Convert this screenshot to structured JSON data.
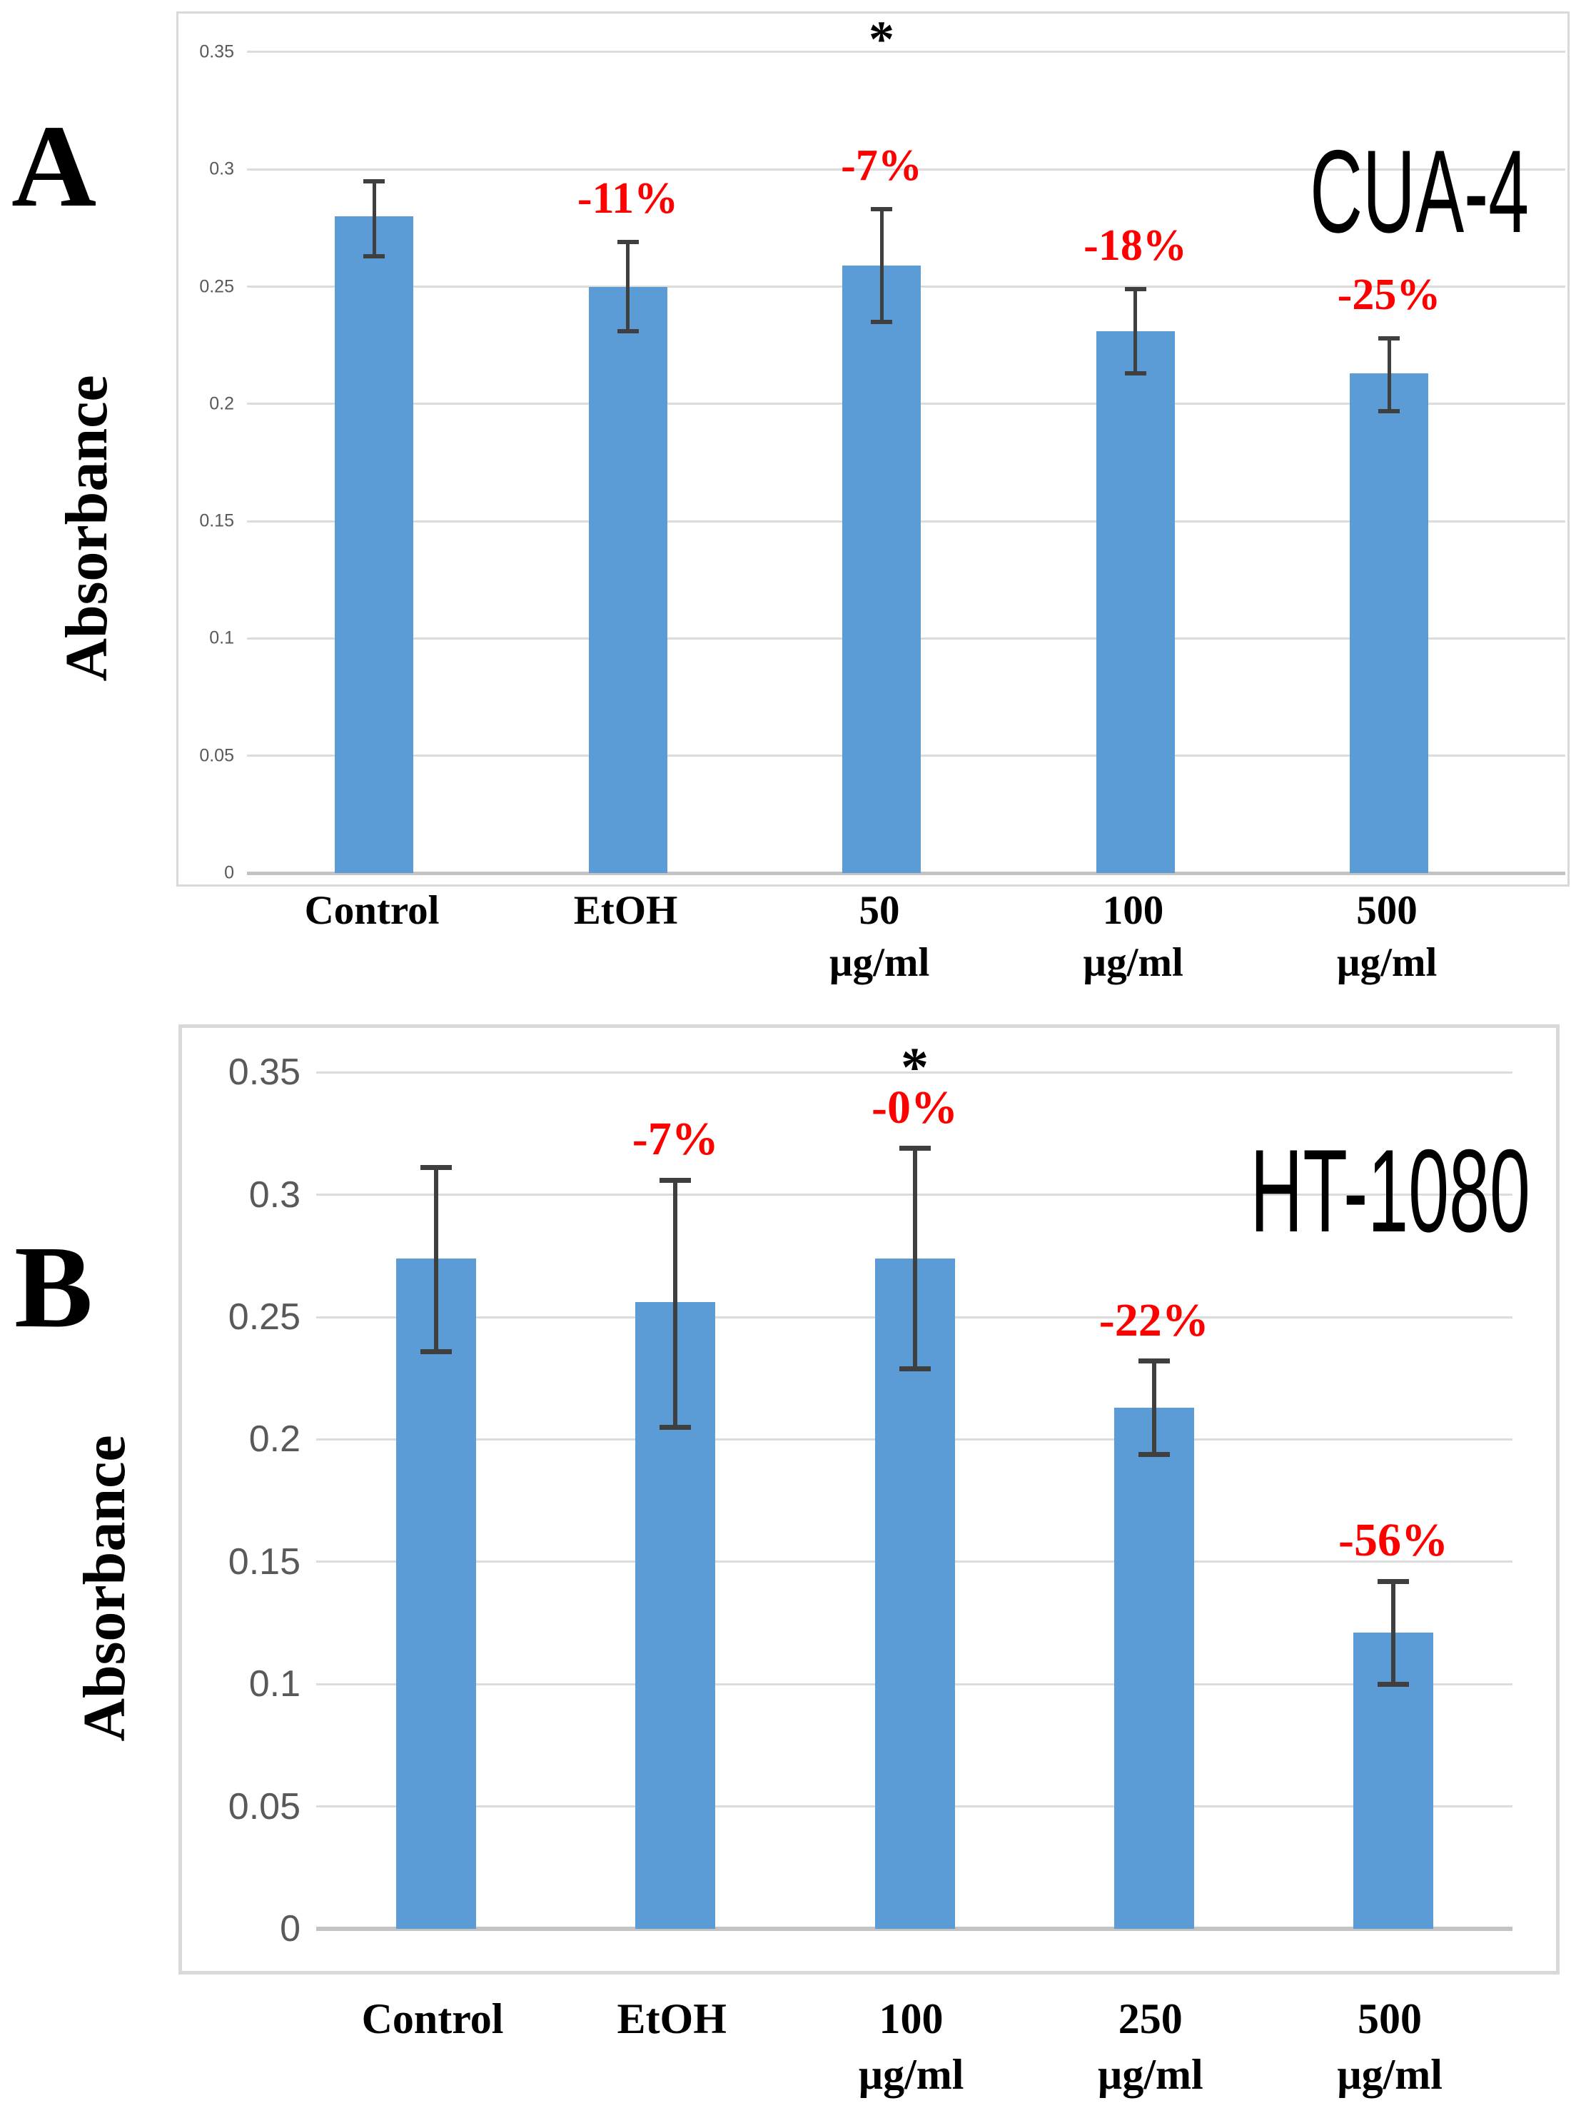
{
  "panel_letters": [
    "A",
    "B"
  ],
  "colors": {
    "bar": "#5b9cd6",
    "error_bar": "#3f3f3f",
    "pct_label": "#ff0000",
    "grid_line": "#dcdcdc",
    "axis_line": "#c3c3c3",
    "frame_border": "#d9d9d9",
    "tick_text": "#595959",
    "title_text": "#000000"
  },
  "chart_data": [
    {
      "type": "bar",
      "panel": "A",
      "title": "CUA-4",
      "xlabel": "",
      "ylabel": "Absorbance",
      "ylim": [
        0,
        0.35
      ],
      "grid": true,
      "legend_position": "none",
      "yticks": [
        0,
        0.05,
        0.1,
        0.15,
        0.2,
        0.25,
        0.3,
        0.35
      ],
      "ytick_labels": [
        "0",
        "0.05",
        "0.1",
        "0.15",
        "0.2",
        "0.25",
        "0.3",
        "0.35"
      ],
      "categories": [
        {
          "label": "Control",
          "unit": ""
        },
        {
          "label": "EtOH",
          "unit": ""
        },
        {
          "label": "50",
          "unit": "µg/ml"
        },
        {
          "label": "100",
          "unit": "µg/ml"
        },
        {
          "label": "500",
          "unit": "µg/ml"
        }
      ],
      "series": [
        {
          "name": "Absorbance",
          "values": [
            0.28,
            0.25,
            0.259,
            0.231,
            0.213
          ],
          "error_low": [
            0.263,
            0.231,
            0.235,
            0.213,
            0.197
          ],
          "error_high": [
            0.295,
            0.269,
            0.283,
            0.249,
            0.228
          ]
        }
      ],
      "pct_change_labels": [
        "",
        "-11%",
        "-7%",
        "-18%",
        "-25%"
      ],
      "significance_marker": {
        "symbol": "*",
        "category_index": 2
      }
    },
    {
      "type": "bar",
      "panel": "B",
      "title": "HT-1080",
      "xlabel": "",
      "ylabel": "Absorbance",
      "ylim": [
        0,
        0.35
      ],
      "grid": true,
      "legend_position": "none",
      "yticks": [
        0,
        0.05,
        0.1,
        0.15,
        0.2,
        0.25,
        0.3,
        0.35
      ],
      "ytick_labels": [
        "0",
        "0.05",
        "0.1",
        "0.15",
        "0.2",
        "0.25",
        "0.3",
        "0.35"
      ],
      "categories": [
        {
          "label": "Control",
          "unit": ""
        },
        {
          "label": "EtOH",
          "unit": ""
        },
        {
          "label": "100",
          "unit": "µg/ml"
        },
        {
          "label": "250",
          "unit": "µg/ml"
        },
        {
          "label": "500",
          "unit": "µg/ml"
        }
      ],
      "series": [
        {
          "name": "Absorbance",
          "values": [
            0.274,
            0.256,
            0.274,
            0.213,
            0.121
          ],
          "error_low": [
            0.236,
            0.205,
            0.229,
            0.194,
            0.1
          ],
          "error_high": [
            0.311,
            0.306,
            0.319,
            0.232,
            0.142
          ]
        }
      ],
      "pct_change_labels": [
        "",
        "-7%",
        "-0%",
        "-22%",
        "-56%"
      ],
      "significance_marker": {
        "symbol": "*",
        "category_index": 2
      }
    }
  ]
}
